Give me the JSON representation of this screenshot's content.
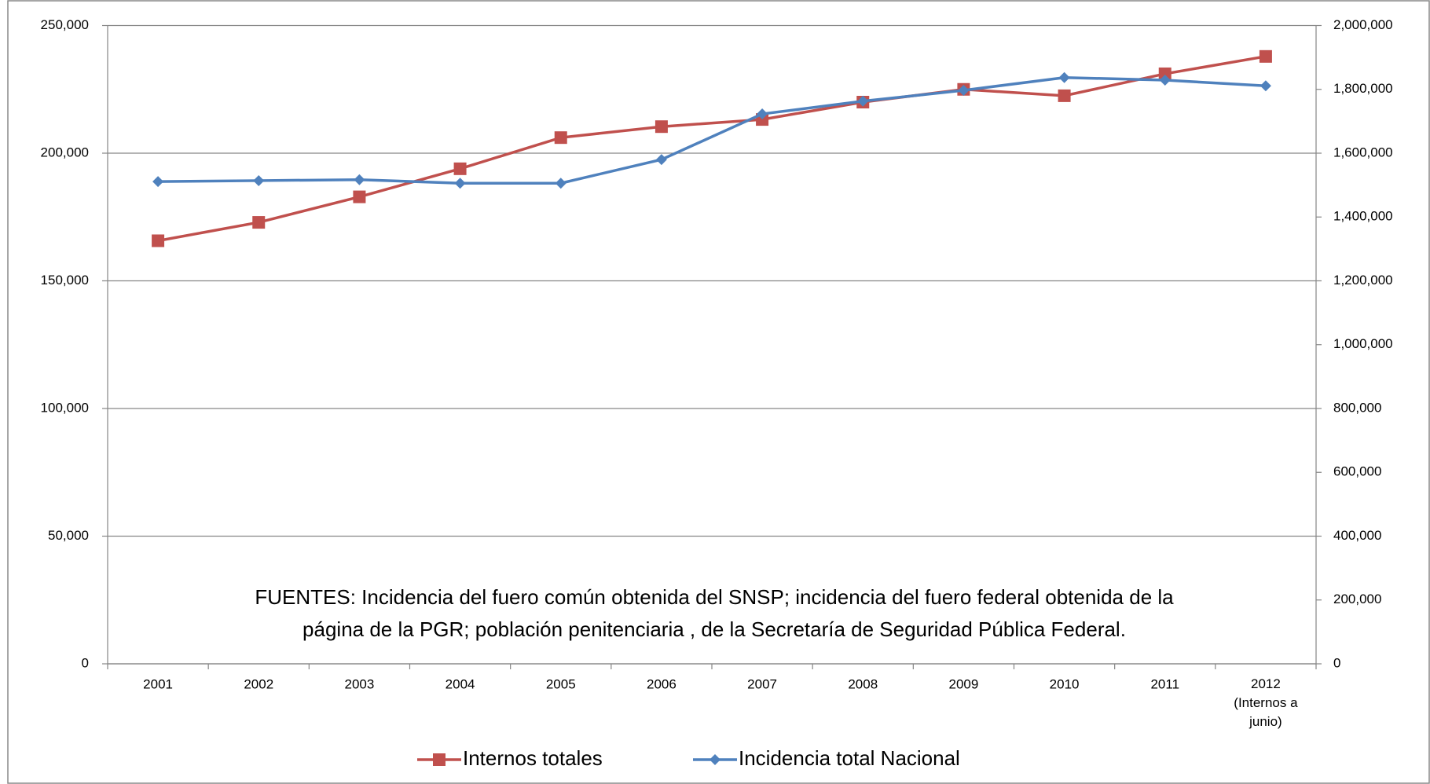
{
  "chart_data": {
    "type": "line",
    "categories": [
      "2001",
      "2002",
      "2003",
      "2004",
      "2005",
      "2006",
      "2007",
      "2008",
      "2009",
      "2010",
      "2011",
      "2012\n(Internos a\njunio)"
    ],
    "series": [
      {
        "name": "Internos totales",
        "color": "#c0504d",
        "marker": "square",
        "axis": "y",
        "values": [
          165700,
          172900,
          182900,
          193900,
          206100,
          210400,
          213200,
          220000,
          225000,
          222500,
          231100,
          237900
        ]
      },
      {
        "name": "Incidencia total Nacional",
        "color": "#4f81bd",
        "marker": "diamond",
        "axis": "y2",
        "values": [
          1511000,
          1514000,
          1517000,
          1506000,
          1506000,
          1580000,
          1723000,
          1763000,
          1797000,
          1837000,
          1829000,
          1811000
        ]
      }
    ],
    "ylim": [
      0,
      250000
    ],
    "yticks": [
      0,
      {
        "value": 50000,
        "label": "50,000"
      },
      {
        "value": 100000,
        "label": "100,000"
      },
      {
        "value": 150000,
        "label": "150,000"
      },
      {
        "value": 200000,
        "label": "200,000"
      },
      {
        "value": 250000,
        "label": "250,000"
      }
    ],
    "y2lim": [
      0,
      2000000
    ],
    "y2ticks": [
      0,
      {
        "value": 200000,
        "label": "200,000"
      },
      {
        "value": 400000,
        "label": "400,000"
      },
      {
        "value": 600000,
        "label": "600,000"
      },
      {
        "value": 800000,
        "label": "800,000"
      },
      {
        "value": 1000000,
        "label": "1,000,000"
      },
      {
        "value": 1200000,
        "label": "1,200,000"
      },
      {
        "value": 1400000,
        "label": "1,400,000"
      },
      {
        "value": 1600000,
        "label": "1,600,000"
      },
      {
        "value": 1800000,
        "label": "1,800,000"
      },
      {
        "value": 2000000,
        "label": "2,000,000"
      }
    ],
    "grid": true,
    "legend": "bottom",
    "annotation": "FUENTES: Incidencia del fuero común obtenida del SNSP; incidencia del fuero federal obtenida de la\npágina de la PGR; población penitenciaria , de la  Secretaría de Seguridad Pública Federal."
  }
}
